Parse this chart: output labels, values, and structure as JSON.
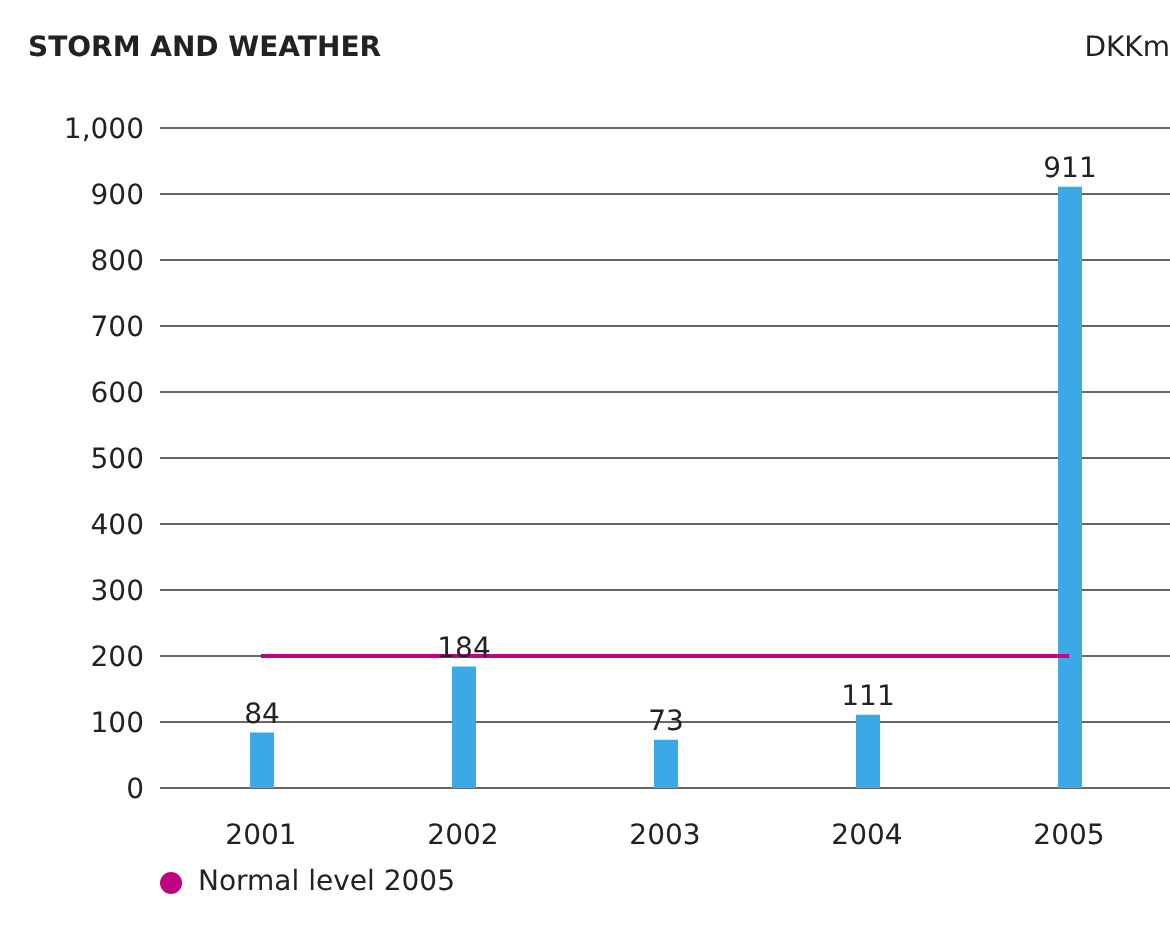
{
  "chart_data": {
    "type": "bar",
    "title": "STORM AND WEATHER",
    "ylabel": "DKKm",
    "categories": [
      "2001",
      "2002",
      "2003",
      "2004",
      "2005"
    ],
    "values": [
      84,
      184,
      73,
      111,
      911
    ],
    "color": "#3aa9e6",
    "ylim": [
      0,
      1000
    ],
    "yticks": [
      0,
      100,
      200,
      300,
      400,
      500,
      600,
      700,
      800,
      900,
      {
        "value": 1000,
        "label": "1,000"
      }
    ],
    "grid": "y",
    "data_labels": true,
    "legend": "bottom left",
    "ref_lines": [
      {
        "axis": "y",
        "value": 200,
        "label": "Normal level 2005",
        "color": "#c0047f"
      }
    ]
  }
}
